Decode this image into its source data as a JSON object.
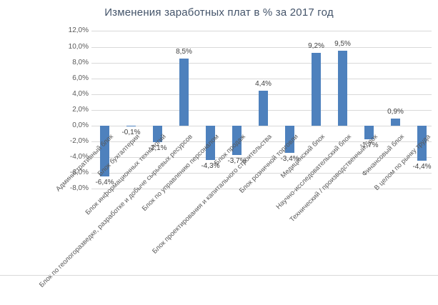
{
  "chart_data": {
    "type": "bar",
    "title": "Изменения заработных плат в % за 2017 год",
    "categories": [
      "Административный блок",
      "Блок бухгалтерии",
      "Блок информационных технологий",
      "Блок по геологоразведке, разработке и добыче сырьевых ресурсов",
      "Блок по управлению персоналом",
      "Блок продаж",
      "Блок проектирования и капитального строительства",
      "Блок розничной торговли",
      "Медицинский блок",
      "Научно-исследовательский блок",
      "Технический / производственный блок",
      "Финансовый блок",
      "В целом по рынку труда"
    ],
    "values": [
      -6.4,
      -0.1,
      -2.1,
      8.5,
      -4.3,
      -3.7,
      4.4,
      -3.4,
      9.2,
      9.5,
      -1.7,
      0.9,
      -4.4
    ],
    "value_labels": [
      "-6,4%",
      "-0,1%",
      "-2,1%",
      "8,5%",
      "-4,3%",
      "-3,7%",
      "4,4%",
      "-3,4%",
      "9,2%",
      "9,5%",
      "-1,7%",
      "0,9%",
      "-4,4%"
    ],
    "ylabel": "",
    "xlabel": "",
    "ylim": [
      -8,
      12
    ],
    "ytick_step": 2,
    "ytick_labels": [
      "-8,0%",
      "-6,0%",
      "-4,0%",
      "-2,0%",
      "0,0%",
      "2,0%",
      "4,0%",
      "6,0%",
      "8,0%",
      "10,0%",
      "12,0%"
    ],
    "grid": true,
    "legend_position": "none"
  },
  "colors": {
    "bar": "#4E81BD",
    "title_text": "#44546A",
    "axis_text": "#595959",
    "data_label_text": "#404040",
    "gridline": "#D9D9D9",
    "background": "#FFFFFF"
  }
}
